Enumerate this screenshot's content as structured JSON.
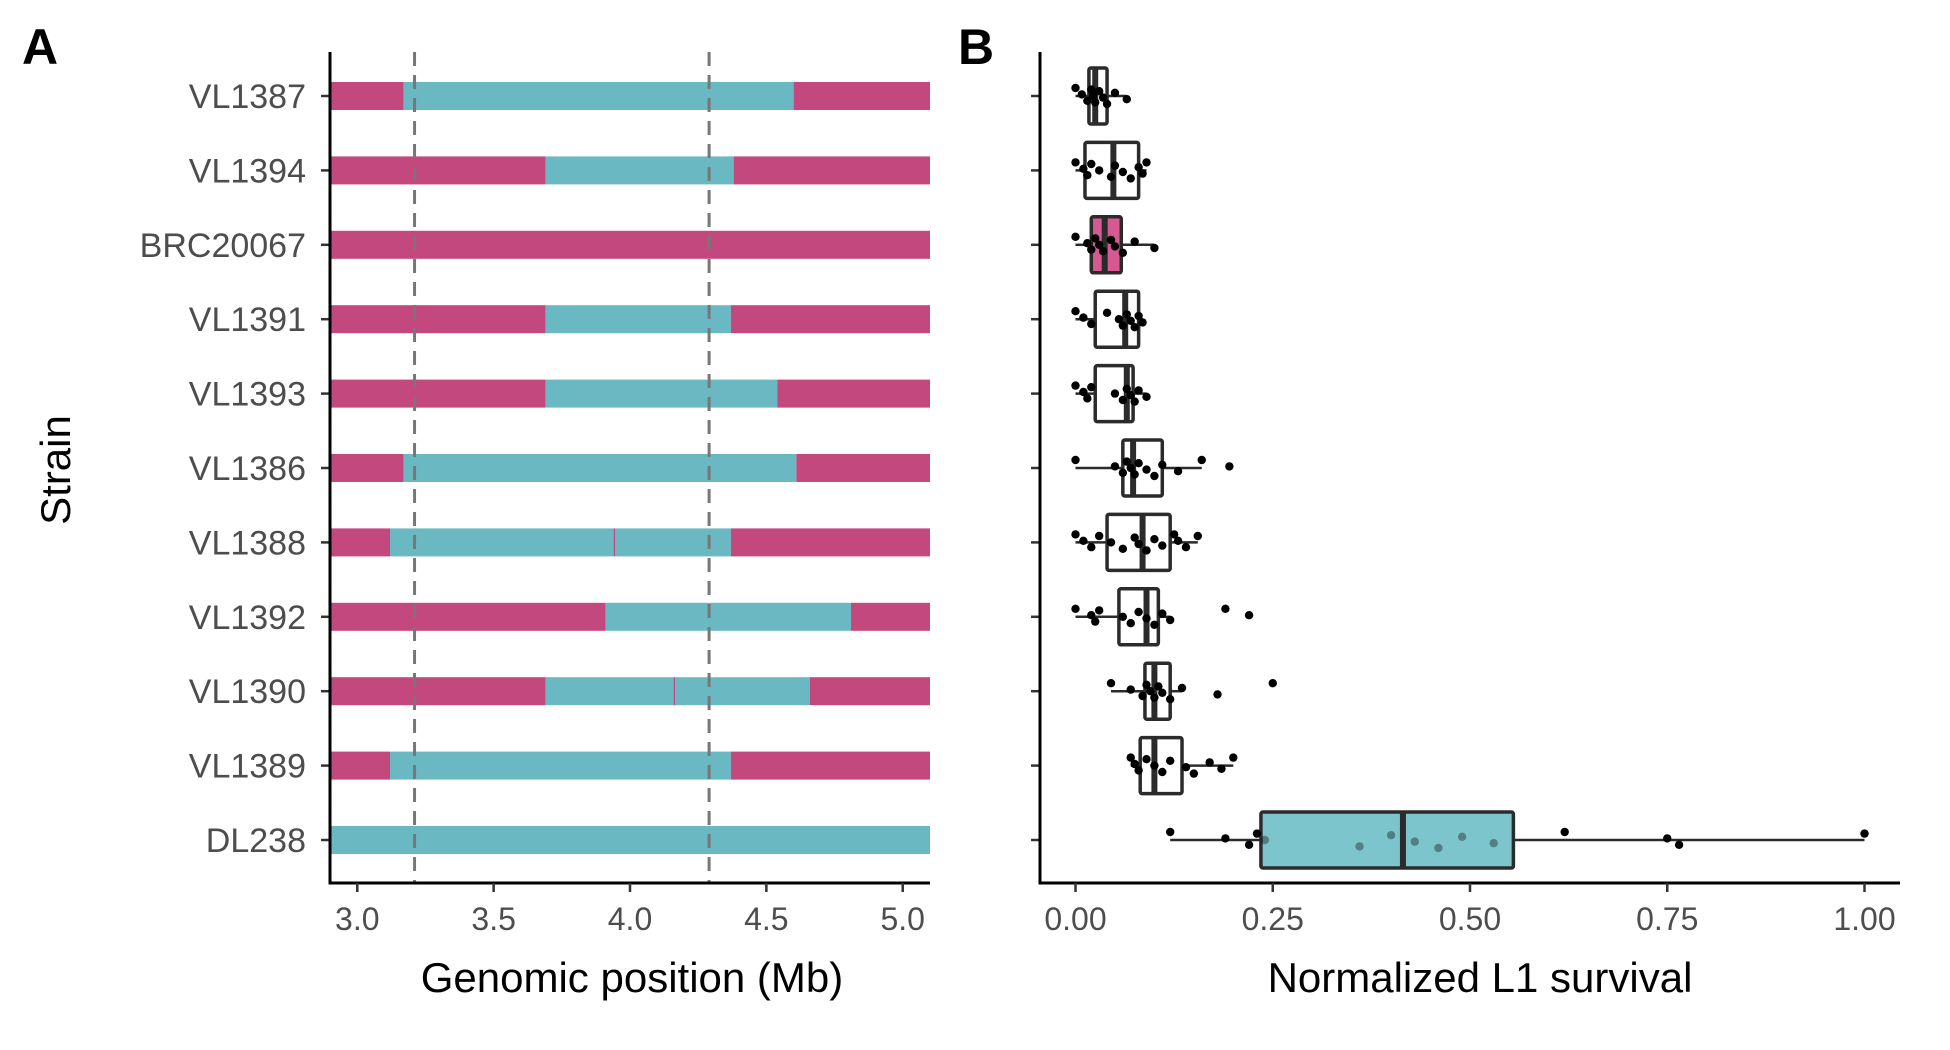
{
  "panels": {
    "a": {
      "letter": "A"
    },
    "b": {
      "letter": "B"
    }
  },
  "colors": {
    "n2_like": "#c2487d",
    "cb4856_like": "#6ab9c2",
    "box_teal_fill": "#7cc5cc",
    "box_pink_fill": "#d65a92",
    "box_outline": "#2b2b2b",
    "point": "#000000",
    "dashed_line": "#777777",
    "tick_text": "#4d4d4d"
  },
  "chart_data": [
    {
      "type": "bar",
      "subtype": "horizontal genotype segments",
      "xlabel": "Genomic position (Mb)",
      "ylabel": "Strain",
      "xlim": [
        2.9,
        5.1
      ],
      "x_ticks": [
        "3.0",
        "3.5",
        "4.0",
        "4.5",
        "5.0"
      ],
      "x_tick_values": [
        3.0,
        3.5,
        4.0,
        4.5,
        5.0
      ],
      "reference_lines_x": [
        3.21,
        4.29
      ],
      "grid": false,
      "strains": [
        {
          "name": "VL1387",
          "segments": [
            {
              "start": 2.9,
              "end": 3.17,
              "genotype": "n2_like"
            },
            {
              "start": 3.17,
              "end": 4.6,
              "genotype": "cb4856_like"
            },
            {
              "start": 4.6,
              "end": 5.1,
              "genotype": "n2_like"
            }
          ]
        },
        {
          "name": "VL1394",
          "segments": [
            {
              "start": 2.9,
              "end": 3.69,
              "genotype": "n2_like"
            },
            {
              "start": 3.69,
              "end": 4.38,
              "genotype": "cb4856_like"
            },
            {
              "start": 4.38,
              "end": 5.1,
              "genotype": "n2_like"
            }
          ]
        },
        {
          "name": "BRC20067",
          "segments": [
            {
              "start": 2.9,
              "end": 5.1,
              "genotype": "n2_like"
            }
          ]
        },
        {
          "name": "VL1391",
          "segments": [
            {
              "start": 2.9,
              "end": 3.69,
              "genotype": "n2_like"
            },
            {
              "start": 3.69,
              "end": 4.37,
              "genotype": "cb4856_like"
            },
            {
              "start": 4.37,
              "end": 5.1,
              "genotype": "n2_like"
            }
          ]
        },
        {
          "name": "VL1393",
          "segments": [
            {
              "start": 2.9,
              "end": 3.69,
              "genotype": "n2_like"
            },
            {
              "start": 3.69,
              "end": 4.54,
              "genotype": "cb4856_like"
            },
            {
              "start": 4.54,
              "end": 5.1,
              "genotype": "n2_like"
            }
          ]
        },
        {
          "name": "VL1386",
          "segments": [
            {
              "start": 2.9,
              "end": 3.17,
              "genotype": "n2_like"
            },
            {
              "start": 3.17,
              "end": 4.61,
              "genotype": "cb4856_like"
            },
            {
              "start": 4.61,
              "end": 5.1,
              "genotype": "n2_like"
            }
          ]
        },
        {
          "name": "VL1388",
          "segments": [
            {
              "start": 2.9,
              "end": 3.12,
              "genotype": "n2_like"
            },
            {
              "start": 3.12,
              "end": 3.94,
              "genotype": "cb4856_like"
            },
            {
              "start": 3.94,
              "end": 3.945,
              "genotype": "n2_like"
            },
            {
              "start": 3.945,
              "end": 4.37,
              "genotype": "cb4856_like"
            },
            {
              "start": 4.37,
              "end": 5.1,
              "genotype": "n2_like"
            }
          ]
        },
        {
          "name": "VL1392",
          "segments": [
            {
              "start": 2.9,
              "end": 3.91,
              "genotype": "n2_like"
            },
            {
              "start": 3.91,
              "end": 4.81,
              "genotype": "cb4856_like"
            },
            {
              "start": 4.81,
              "end": 5.1,
              "genotype": "n2_like"
            }
          ]
        },
        {
          "name": "VL1390",
          "segments": [
            {
              "start": 2.9,
              "end": 3.69,
              "genotype": "n2_like"
            },
            {
              "start": 3.69,
              "end": 4.16,
              "genotype": "cb4856_like"
            },
            {
              "start": 4.16,
              "end": 4.165,
              "genotype": "n2_like"
            },
            {
              "start": 4.165,
              "end": 4.66,
              "genotype": "cb4856_like"
            },
            {
              "start": 4.66,
              "end": 5.1,
              "genotype": "n2_like"
            }
          ]
        },
        {
          "name": "VL1389",
          "segments": [
            {
              "start": 2.9,
              "end": 3.12,
              "genotype": "n2_like"
            },
            {
              "start": 3.12,
              "end": 4.37,
              "genotype": "cb4856_like"
            },
            {
              "start": 4.37,
              "end": 5.1,
              "genotype": "n2_like"
            }
          ]
        },
        {
          "name": "DL238",
          "segments": [
            {
              "start": 2.9,
              "end": 5.1,
              "genotype": "cb4856_like"
            }
          ]
        }
      ]
    },
    {
      "type": "boxplot",
      "xlabel": "Normalized L1 survival",
      "ylabel": "",
      "xlim": [
        -0.045,
        1.045
      ],
      "x_ticks": [
        "0.00",
        "0.25",
        "0.50",
        "0.75",
        "1.00"
      ],
      "x_tick_values": [
        0.0,
        0.25,
        0.5,
        0.75,
        1.0
      ],
      "grid": false,
      "boxes": [
        {
          "strain": "VL1387",
          "fill": "white",
          "q1": 0.017,
          "median": 0.025,
          "q3": 0.04,
          "whisker_low": 0.0,
          "whisker_high": 0.065,
          "points": [
            0.0,
            0.008,
            0.015,
            0.02,
            0.022,
            0.025,
            0.03,
            0.035,
            0.04,
            0.05,
            0.065
          ]
        },
        {
          "strain": "VL1394",
          "fill": "white",
          "q1": 0.012,
          "median": 0.048,
          "q3": 0.08,
          "whisker_low": 0.0,
          "whisker_high": 0.09,
          "points": [
            0.0,
            0.01,
            0.015,
            0.02,
            0.03,
            0.045,
            0.05,
            0.06,
            0.07,
            0.08,
            0.085,
            0.09
          ]
        },
        {
          "strain": "BRC20067",
          "fill": "pink",
          "q1": 0.02,
          "median": 0.037,
          "q3": 0.058,
          "whisker_low": 0.0,
          "whisker_high": 0.1,
          "points": [
            0.0,
            0.015,
            0.02,
            0.025,
            0.03,
            0.035,
            0.045,
            0.05,
            0.06,
            0.075,
            0.1
          ]
        },
        {
          "strain": "VL1391",
          "fill": "white",
          "q1": 0.025,
          "median": 0.063,
          "q3": 0.08,
          "whisker_low": 0.0,
          "whisker_high": 0.085,
          "points": [
            0.0,
            0.01,
            0.02,
            0.04,
            0.055,
            0.06,
            0.065,
            0.07,
            0.075,
            0.08,
            0.085
          ]
        },
        {
          "strain": "VL1393",
          "fill": "white",
          "q1": 0.025,
          "median": 0.065,
          "q3": 0.073,
          "whisker_low": 0.0,
          "whisker_high": 0.09,
          "points": [
            0.0,
            0.01,
            0.015,
            0.02,
            0.05,
            0.06,
            0.065,
            0.07,
            0.075,
            0.08,
            0.09
          ]
        },
        {
          "strain": "VL1386",
          "fill": "white",
          "q1": 0.06,
          "median": 0.073,
          "q3": 0.11,
          "whisker_low": 0.0,
          "whisker_high": 0.16,
          "points": [
            0.0,
            0.05,
            0.06,
            0.065,
            0.07,
            0.075,
            0.08,
            0.09,
            0.1,
            0.11,
            0.13,
            0.16,
            0.195
          ]
        },
        {
          "strain": "VL1388",
          "fill": "white",
          "q1": 0.04,
          "median": 0.085,
          "q3": 0.12,
          "whisker_low": 0.0,
          "whisker_high": 0.155,
          "points": [
            0.0,
            0.01,
            0.02,
            0.03,
            0.045,
            0.06,
            0.075,
            0.08,
            0.09,
            0.1,
            0.11,
            0.125,
            0.13,
            0.14,
            0.155
          ]
        },
        {
          "strain": "VL1392",
          "fill": "white",
          "q1": 0.055,
          "median": 0.09,
          "q3": 0.105,
          "whisker_low": 0.0,
          "whisker_high": 0.12,
          "points": [
            0.0,
            0.02,
            0.025,
            0.03,
            0.06,
            0.07,
            0.08,
            0.09,
            0.1,
            0.11,
            0.12,
            0.19,
            0.22
          ]
        },
        {
          "strain": "VL1390",
          "fill": "white",
          "q1": 0.088,
          "median": 0.1,
          "q3": 0.12,
          "whisker_low": 0.045,
          "whisker_high": 0.135,
          "points": [
            0.045,
            0.07,
            0.085,
            0.09,
            0.095,
            0.1,
            0.105,
            0.11,
            0.12,
            0.135,
            0.18,
            0.25
          ]
        },
        {
          "strain": "VL1389",
          "fill": "white",
          "q1": 0.082,
          "median": 0.1,
          "q3": 0.135,
          "whisker_low": 0.07,
          "whisker_high": 0.2,
          "points": [
            0.07,
            0.075,
            0.08,
            0.09,
            0.1,
            0.11,
            0.12,
            0.14,
            0.15,
            0.17,
            0.185,
            0.2
          ]
        },
        {
          "strain": "DL238",
          "fill": "teal",
          "q1": 0.235,
          "median": 0.415,
          "q3": 0.555,
          "whisker_low": 0.12,
          "whisker_high": 1.0,
          "points": [
            0.12,
            0.19,
            0.22,
            0.23,
            0.24,
            0.36,
            0.4,
            0.43,
            0.46,
            0.49,
            0.53,
            0.62,
            0.75,
            0.765,
            1.0
          ]
        }
      ]
    }
  ]
}
